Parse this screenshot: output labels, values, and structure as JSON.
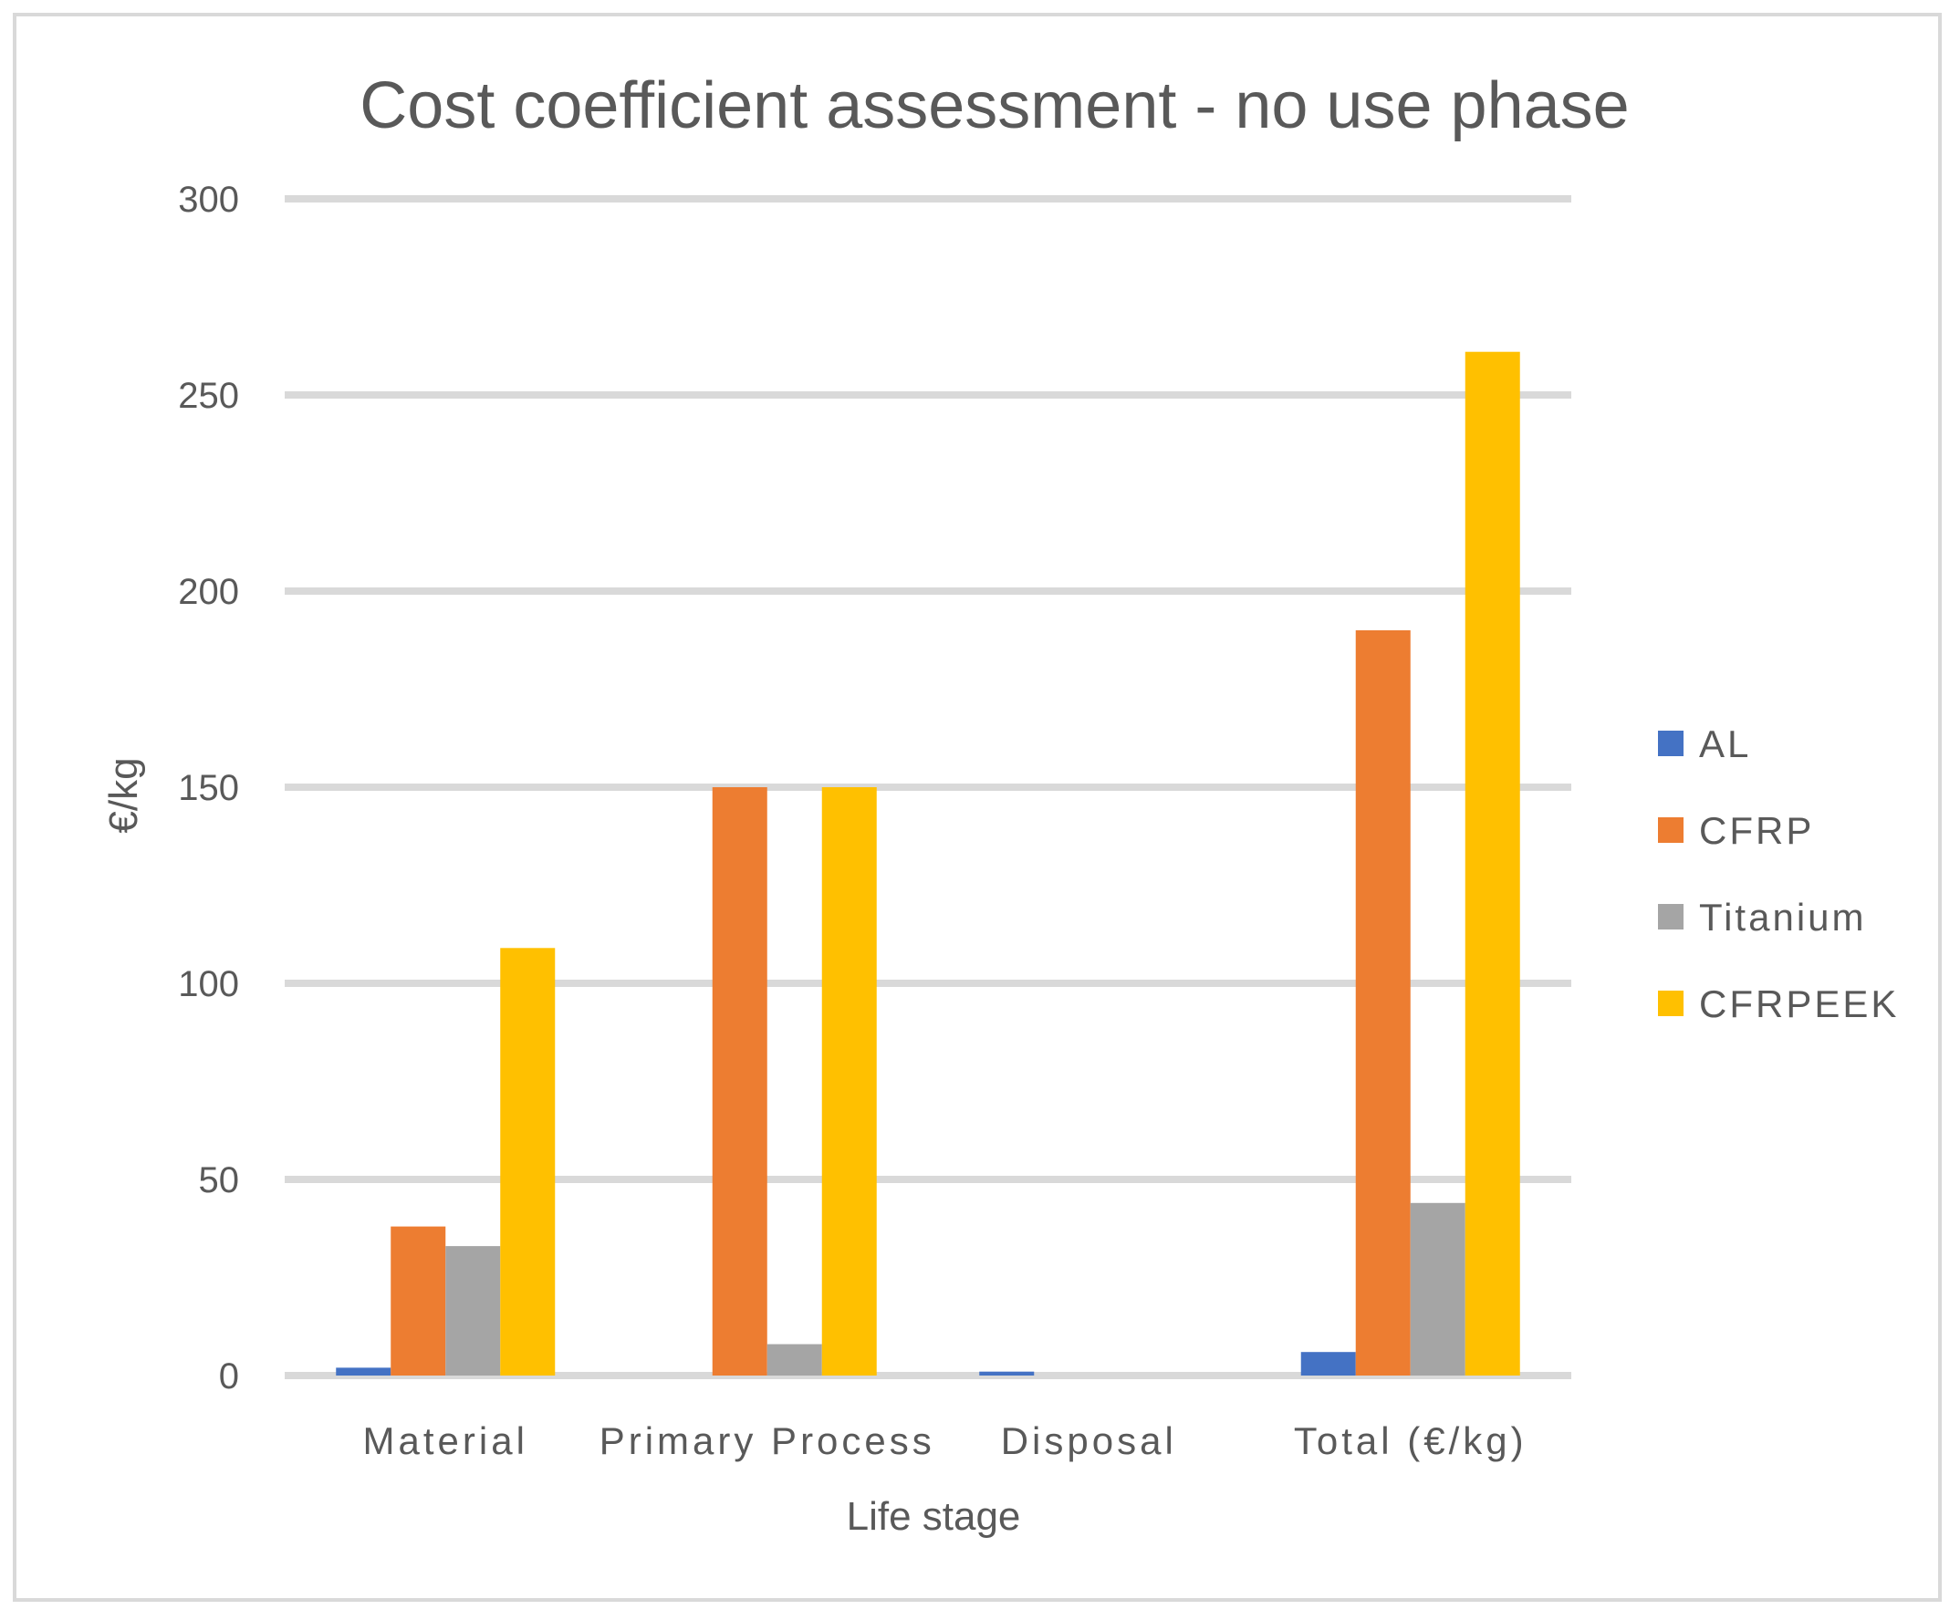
{
  "chart_data": {
    "type": "bar",
    "title": "Cost coefficient assessment - no use phase",
    "xlabel": "Life stage",
    "ylabel": "€/kg",
    "categories": [
      "Material",
      "Primary Process",
      "Disposal",
      "Total   (€/kg)"
    ],
    "ylim": [
      0,
      300
    ],
    "yticks": [
      0,
      50,
      100,
      150,
      200,
      250,
      300
    ],
    "grid": true,
    "legend": "right",
    "series": [
      {
        "name": "AL",
        "color": "#4472c4",
        "values": [
          2,
          0,
          1,
          6
        ]
      },
      {
        "name": "CFRP",
        "color": "#ed7d31",
        "values": [
          38,
          150,
          0,
          190
        ]
      },
      {
        "name": "Titanium",
        "color": "#a5a5a5",
        "values": [
          33,
          8,
          0,
          44
        ]
      },
      {
        "name": "CFRPEEK",
        "color": "#ffc000",
        "values": [
          109,
          150,
          0,
          261
        ]
      }
    ]
  }
}
